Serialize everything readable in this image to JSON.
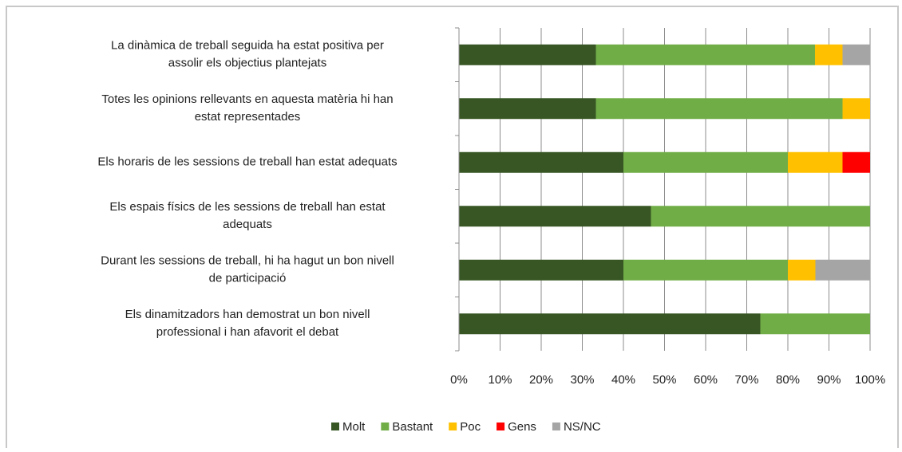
{
  "chart_data": {
    "type": "stacked-bar-horizontal",
    "categories": [
      [
        "La dinàmica de treball seguida ha estat positiva per",
        "assolir els objectius plantejats"
      ],
      [
        "Totes les opinions rellevants en aquesta matèria hi han",
        "estat representades"
      ],
      [
        "Els horaris de les sessions de treball han estat adequats"
      ],
      [
        "Els espais físics de les sessions de treball han estat",
        "adequats"
      ],
      [
        "Durant les sessions de treball, hi ha hagut un bon nivell",
        "de participació"
      ],
      [
        "Els dinamitzadors han demostrat un bon nivell",
        "professional i han afavorit el debat"
      ]
    ],
    "series": [
      {
        "name": "Molt",
        "color": "#375623",
        "values": [
          33.3,
          33.3,
          40,
          46.7,
          40,
          73.3
        ]
      },
      {
        "name": "Bastant",
        "color": "#70ad47",
        "values": [
          53.3,
          60,
          40,
          53.3,
          40,
          26.7
        ]
      },
      {
        "name": "Poc",
        "color": "#ffc000",
        "values": [
          6.7,
          6.7,
          13.3,
          0,
          6.7,
          0
        ]
      },
      {
        "name": "Gens",
        "color": "#ff0000",
        "values": [
          0,
          0,
          6.7,
          0,
          0,
          0
        ]
      },
      {
        "name": "NS/NC",
        "color": "#a5a5a5",
        "values": [
          6.7,
          0,
          0,
          0,
          13.3,
          0
        ]
      }
    ],
    "xlim": [
      0,
      100
    ],
    "xticks": [
      {
        "value": 0,
        "label": "0%"
      },
      {
        "value": 10,
        "label": "10%"
      },
      {
        "value": 20,
        "label": "20%"
      },
      {
        "value": 30,
        "label": "30%"
      },
      {
        "value": 40,
        "label": "40%"
      },
      {
        "value": 50,
        "label": "50%"
      },
      {
        "value": 60,
        "label": "60%"
      },
      {
        "value": 70,
        "label": "70%"
      },
      {
        "value": 80,
        "label": "80%"
      },
      {
        "value": 90,
        "label": "90%"
      },
      {
        "value": 100,
        "label": "100%"
      }
    ],
    "grid": true,
    "legend": "bottom"
  }
}
